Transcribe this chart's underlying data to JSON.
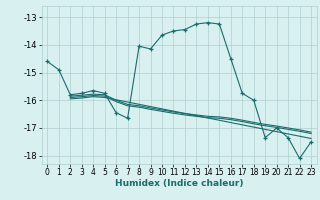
{
  "xlabel": "Humidex (Indice chaleur)",
  "bg_color": "#d8f0f0",
  "grid_color": "#b0cece",
  "line_color": "#1a6b6b",
  "xlim": [
    -0.5,
    23.5
  ],
  "ylim": [
    -18.3,
    -12.6
  ],
  "xticks": [
    0,
    1,
    2,
    3,
    4,
    5,
    6,
    7,
    8,
    9,
    10,
    11,
    12,
    13,
    14,
    15,
    16,
    17,
    18,
    19,
    20,
    21,
    22,
    23
  ],
  "yticks": [
    -18,
    -17,
    -16,
    -15,
    -14,
    -13
  ],
  "series_main_x": [
    0,
    1,
    2,
    3,
    4,
    5,
    6,
    7,
    8,
    9,
    10,
    11,
    12,
    13,
    14,
    15,
    16,
    17,
    18,
    19,
    20,
    21,
    22,
    23
  ],
  "series_main_y": [
    -14.6,
    -14.9,
    -15.8,
    -15.75,
    -15.65,
    -15.75,
    -16.45,
    -16.65,
    -14.05,
    -14.15,
    -13.65,
    -13.5,
    -13.45,
    -13.25,
    -13.2,
    -13.25,
    -14.5,
    -15.75,
    -16.0,
    -17.35,
    -17.0,
    -17.35,
    -18.1,
    -17.5
  ],
  "series2_x": [
    2,
    3,
    4,
    5,
    6,
    7,
    8,
    9,
    10,
    11,
    12,
    13,
    14,
    15,
    16,
    17,
    18,
    19,
    20,
    21,
    22,
    23
  ],
  "series2_y": [
    -15.85,
    -15.82,
    -15.78,
    -15.8,
    -16.0,
    -16.15,
    -16.2,
    -16.28,
    -16.35,
    -16.42,
    -16.48,
    -16.53,
    -16.58,
    -16.6,
    -16.65,
    -16.72,
    -16.8,
    -16.87,
    -16.93,
    -17.0,
    -17.07,
    -17.15
  ],
  "series3_x": [
    2,
    3,
    4,
    5,
    6,
    7,
    8,
    9,
    10,
    11,
    12,
    13,
    14,
    15,
    16,
    17,
    18,
    19,
    20,
    21,
    22,
    23
  ],
  "series3_y": [
    -15.9,
    -15.87,
    -15.83,
    -15.85,
    -16.05,
    -16.2,
    -16.25,
    -16.33,
    -16.4,
    -16.47,
    -16.53,
    -16.58,
    -16.63,
    -16.65,
    -16.7,
    -16.77,
    -16.85,
    -16.92,
    -16.98,
    -17.05,
    -17.12,
    -17.2
  ],
  "series4_x": [
    2,
    3,
    4,
    5,
    23
  ],
  "series4_y": [
    -15.95,
    -15.92,
    -15.87,
    -15.9,
    -17.38
  ]
}
